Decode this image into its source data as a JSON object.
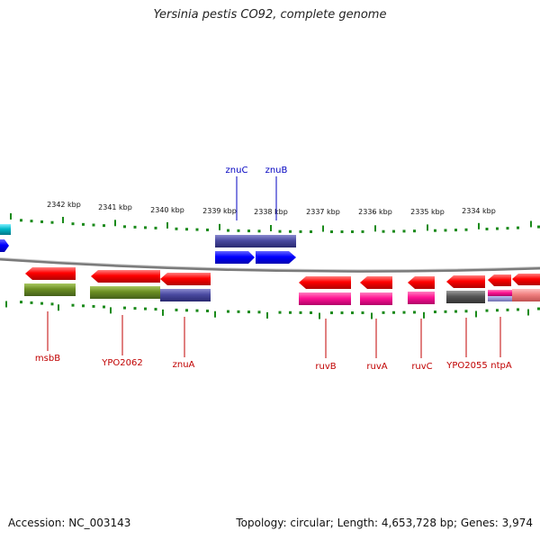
{
  "title": "Yersinia pestis CO92, complete genome",
  "footer": {
    "accession": "Accession: NC_003143",
    "topology": "Topology: circular; Length: 4,653,728 bp; Genes: 3,974"
  },
  "ruler_labels": [
    "2342 kbp",
    "2341 kbp",
    "2340 kbp",
    "2339 kbp",
    "2338 kbp",
    "2337 kbp",
    "2336 kbp",
    "2335 kbp",
    "2334 kbp"
  ],
  "upper_gene_labels": [
    "znuC",
    "znuB"
  ],
  "lower_gene_labels": [
    "msbB",
    "YPO2062",
    "znuA",
    "ruvB",
    "ruvA",
    "ruvC",
    "YPO2055",
    "ntpA"
  ],
  "colors": {
    "forward_cds": "#0000ff",
    "reverse_cds": "#ff0000",
    "cog_transport": "#4a4aa0",
    "cog_cell_wall": "#6b8e23",
    "cog_replication": "#ff1493",
    "cog_general": "#555555",
    "cog_energy": "#f08080",
    "cog_cyan": "#00b8c8",
    "backbone": "#808080",
    "tick": "#1a8a1a",
    "upper_label": "#0000c0",
    "lower_label": "#c00000"
  }
}
